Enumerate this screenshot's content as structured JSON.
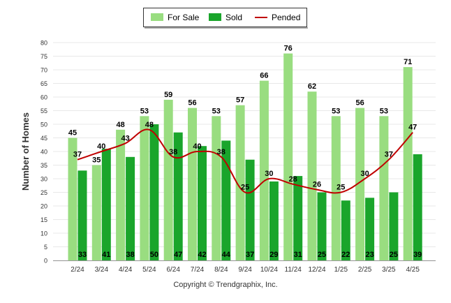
{
  "chart_data": {
    "type": "bar",
    "categories": [
      "2/24",
      "3/24",
      "4/24",
      "5/24",
      "6/24",
      "7/24",
      "8/24",
      "9/24",
      "10/24",
      "11/24",
      "12/24",
      "1/25",
      "2/25",
      "3/25",
      "4/25"
    ],
    "series": [
      {
        "name": "For Sale",
        "type": "bar",
        "color": "#99dd80",
        "values": [
          45,
          35,
          48,
          53,
          59,
          56,
          53,
          57,
          66,
          76,
          62,
          53,
          56,
          53,
          71
        ]
      },
      {
        "name": "Sold",
        "type": "bar",
        "color": "#1aa52b",
        "values": [
          33,
          41,
          38,
          50,
          47,
          42,
          44,
          37,
          29,
          31,
          25,
          22,
          23,
          25,
          39
        ]
      },
      {
        "name": "Pended",
        "type": "line",
        "color": "#c00000",
        "values": [
          37,
          40,
          43,
          48,
          38,
          40,
          38,
          25,
          30,
          28,
          26,
          25,
          30,
          37,
          47
        ]
      }
    ],
    "ylabel": "Number of Homes",
    "ylim": [
      0,
      80
    ],
    "yticks": [
      0,
      5,
      10,
      15,
      20,
      25,
      30,
      35,
      40,
      45,
      50,
      55,
      60,
      65,
      70,
      75,
      80
    ],
    "grid": true,
    "legend": "top-center"
  },
  "footer": {
    "copyright": "Copyright © Trendgraphix, Inc."
  }
}
